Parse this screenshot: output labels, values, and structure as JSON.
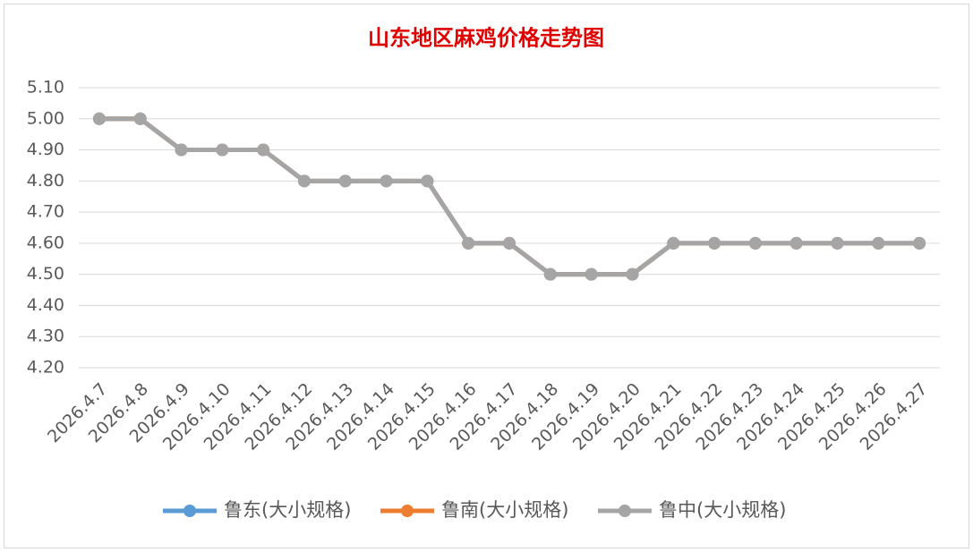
{
  "chart_data": {
    "type": "line",
    "title": "山东地区麻鸡价格走势图",
    "categories": [
      "2026.4.7",
      "2026.4.8",
      "2026.4.9",
      "2026.4.10",
      "2026.4.11",
      "2026.4.12",
      "2026.4.13",
      "2026.4.14",
      "2026.4.15",
      "2026.4.16",
      "2026.4.17",
      "2026.4.18",
      "2026.4.19",
      "2026.4.20",
      "2026.4.21",
      "2026.4.22",
      "2026.4.23",
      "2026.4.24",
      "2026.4.25",
      "2026.4.26",
      "2026.4.27"
    ],
    "series": [
      {
        "name": "鲁东(大小规格)",
        "color": "#5b9bd5",
        "values": [
          5.0,
          5.0,
          4.9,
          4.9,
          4.9,
          4.8,
          4.8,
          4.8,
          4.8,
          4.6,
          4.6,
          4.5,
          4.5,
          4.5,
          4.6,
          4.6,
          4.6,
          4.6,
          4.6,
          4.6,
          4.6
        ]
      },
      {
        "name": "鲁南(大小规格)",
        "color": "#ed7d31",
        "values": [
          5.0,
          5.0,
          4.9,
          4.9,
          4.9,
          4.8,
          4.8,
          4.8,
          4.8,
          4.6,
          4.6,
          4.5,
          4.5,
          4.5,
          4.6,
          4.6,
          4.6,
          4.6,
          4.6,
          4.6,
          4.6
        ]
      },
      {
        "name": "鲁中(大小规格)",
        "color": "#a5a5a5",
        "values": [
          5.0,
          5.0,
          4.9,
          4.9,
          4.9,
          4.8,
          4.8,
          4.8,
          4.8,
          4.6,
          4.6,
          4.5,
          4.5,
          4.5,
          4.6,
          4.6,
          4.6,
          4.6,
          4.6,
          4.6,
          4.6
        ]
      }
    ],
    "ylim": [
      4.2,
      5.1
    ],
    "yticks": [
      {
        "value": 4.2,
        "label": "4.20"
      },
      {
        "value": 4.3,
        "label": "4.30"
      },
      {
        "value": 4.4,
        "label": "4.40"
      },
      {
        "value": 4.5,
        "label": "4.50"
      },
      {
        "value": 4.6,
        "label": "4.60"
      },
      {
        "value": 4.7,
        "label": "4.70"
      },
      {
        "value": 4.8,
        "label": "4.80"
      },
      {
        "value": 4.9,
        "label": "4.90"
      },
      {
        "value": 5.0,
        "label": "5.00"
      },
      {
        "value": 5.1,
        "label": "5.10"
      }
    ],
    "grid": true,
    "legend": "bottom"
  }
}
